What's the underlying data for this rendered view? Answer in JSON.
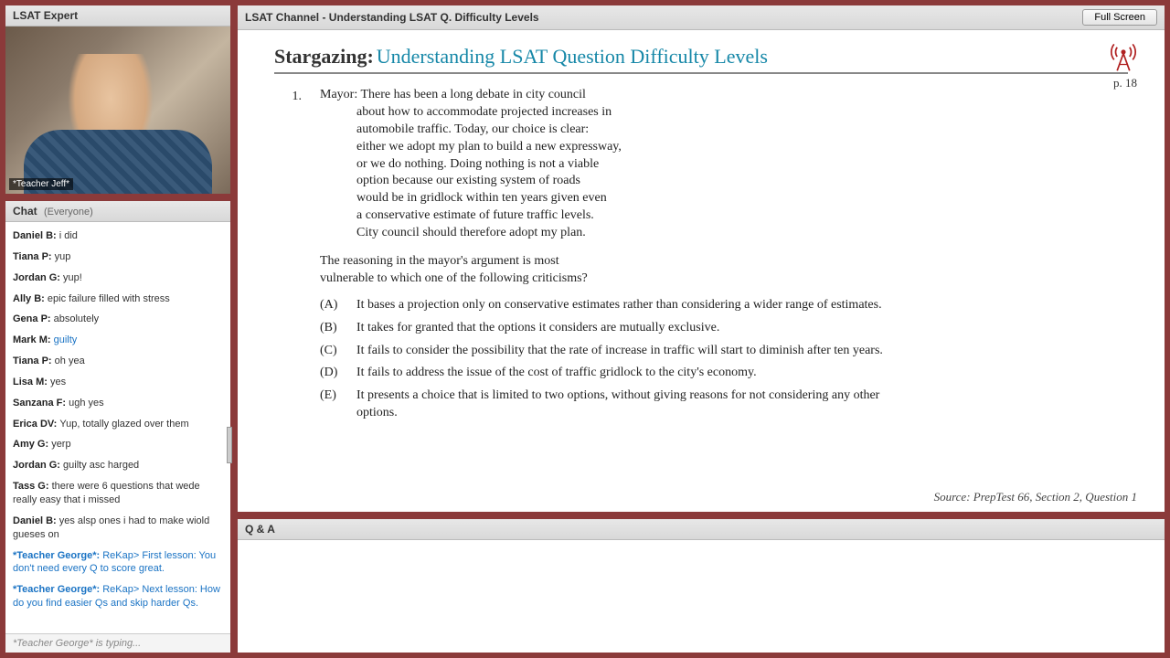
{
  "left": {
    "expert_title": "LSAT Expert",
    "video_label": "*Teacher Jeff*",
    "chat_title": "Chat",
    "chat_scope": "(Everyone)",
    "typing": "*Teacher George* is typing...",
    "messages": [
      {
        "user": "Daniel B:",
        "text": "i did",
        "teacher": false
      },
      {
        "user": "Tiana P:",
        "text": "yup",
        "teacher": false
      },
      {
        "user": "Jordan G:",
        "text": "yup!",
        "teacher": false
      },
      {
        "user": "Ally B:",
        "text": "epic failure filled with stress",
        "teacher": false
      },
      {
        "user": "Gena P:",
        "text": "absolutely",
        "teacher": false
      },
      {
        "user": "Mark M:",
        "text": "guilty",
        "teacher": false,
        "blue": true
      },
      {
        "user": "Tiana P:",
        "text": "oh yea",
        "teacher": false
      },
      {
        "user": "Lisa M:",
        "text": "yes",
        "teacher": false
      },
      {
        "user": "Sanzana F:",
        "text": "ugh yes",
        "teacher": false
      },
      {
        "user": "Erica DV:",
        "text": "Yup, totally glazed over them",
        "teacher": false
      },
      {
        "user": "Amy G:",
        "text": "yerp",
        "teacher": false
      },
      {
        "user": "Jordan G:",
        "text": "guilty asc harged",
        "teacher": false
      },
      {
        "user": "Tass G:",
        "text": "there were 6 questions that wede really easy that i missed",
        "teacher": false
      },
      {
        "user": "Daniel B:",
        "text": "yes alsp ones i had to make wiold gueses on",
        "teacher": false
      },
      {
        "user": "*Teacher George*:",
        "text": "ReKap> First lesson: You don't need every Q to score great.",
        "teacher": true
      },
      {
        "user": "*Teacher George*:",
        "text": "ReKap> Next lesson: How do you find easier Qs and skip harder Qs.",
        "teacher": true
      }
    ]
  },
  "content": {
    "header": "LSAT Channel - Understanding LSAT Q. Difficulty Levels",
    "fullscreen": "Full Screen",
    "title_prefix": "Stargazing:",
    "title_rest": "Understanding LSAT Question Difficulty Levels",
    "page": "p. 18",
    "qnum": "1.",
    "stimulus": [
      "Mayor: There has been a long debate in city council",
      "about how to accommodate projected increases in",
      "automobile traffic. Today, our choice is clear:",
      "either we adopt my plan to build a new expressway,",
      "or we do nothing. Doing nothing is not a viable",
      "option because our existing system of roads",
      "would be in gridlock within ten years given even",
      "a conservative estimate of future traffic levels.",
      "City council should therefore adopt my plan."
    ],
    "stem1": "The reasoning in the mayor's argument is most",
    "stem2": "vulnerable to which one of the following criticisms?",
    "choices": [
      {
        "l": "(A)",
        "t": "It bases a projection only on conservative estimates rather than considering a wider range of estimates."
      },
      {
        "l": "(B)",
        "t": "It takes for granted that the options it considers are mutually exclusive."
      },
      {
        "l": "(C)",
        "t": "It fails to consider the possibility that the rate of increase in traffic will start to diminish after ten years."
      },
      {
        "l": "(D)",
        "t": "It fails to address the issue of the cost of traffic gridlock to the city's economy."
      },
      {
        "l": "(E)",
        "t": "It presents a choice that is limited to two options, without giving reasons for not considering any other options."
      }
    ],
    "source": "Source: PrepTest 66, Section 2, Question 1"
  },
  "qa": {
    "title": "Q & A"
  }
}
